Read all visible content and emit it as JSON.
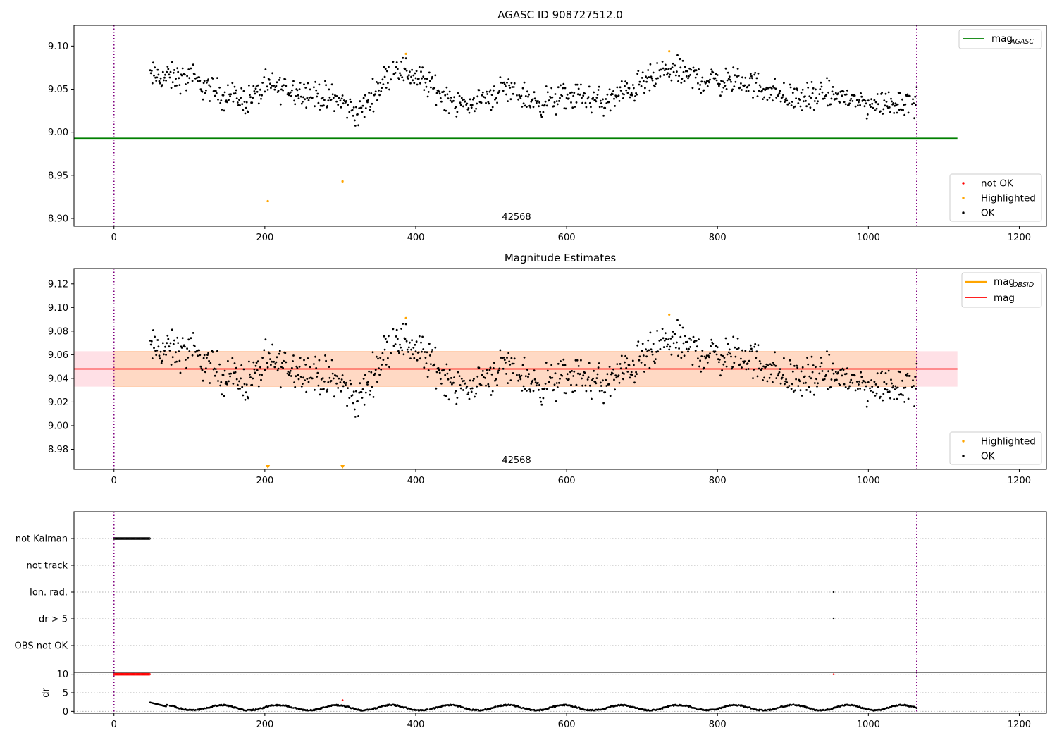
{
  "chart_data": [
    {
      "type": "scatter",
      "title": "AGASC ID 908727512.0",
      "xlim": [
        -53,
        1236
      ],
      "ylim": [
        8.891,
        9.124
      ],
      "xticks": [
        0,
        200,
        400,
        600,
        800,
        1000,
        1200
      ],
      "yticks": [
        8.9,
        8.95,
        9.0,
        9.05,
        9.1
      ],
      "annotation": {
        "text": "42568",
        "x": 532,
        "y": 8.893
      },
      "reference_line": {
        "name": "mag",
        "subscript": "AGASC",
        "y": 8.993,
        "x_range": [
          -53,
          1118
        ],
        "color": "#008000"
      },
      "vlines": [
        0,
        1064
      ],
      "highlighted_points": [
        [
          204,
          8.92
        ],
        [
          303,
          8.943
        ],
        [
          387,
          9.091
        ],
        [
          736,
          9.094
        ]
      ],
      "ok_points_desc": "~1000 black points from x=48 to x=1064, y between 9.005 and 9.092",
      "legend_upper": [
        {
          "label": "mag",
          "subscript": "AGASC",
          "color": "#008000",
          "marker": "line"
        }
      ],
      "legend_lower": [
        {
          "label": "not OK",
          "color": "#ff0000",
          "marker": "dot"
        },
        {
          "label": "Highlighted",
          "color": "#ffa500",
          "marker": "dot"
        },
        {
          "label": "OK",
          "color": "#000000",
          "marker": "dot"
        }
      ]
    },
    {
      "type": "scatter",
      "title": "Magnitude Estimates",
      "xlim": [
        -53,
        1236
      ],
      "ylim": [
        8.963,
        9.133
      ],
      "xticks": [
        0,
        200,
        400,
        600,
        800,
        1000,
        1200
      ],
      "yticks": [
        8.98,
        9.0,
        9.02,
        9.04,
        9.06,
        9.08,
        9.1,
        9.12
      ],
      "annotation": {
        "text": "42568",
        "x": 532,
        "y": 8.965
      },
      "mean_line": {
        "name": "mag",
        "y": 9.048,
        "color": "#ff0000"
      },
      "obsid_line": {
        "name": "mag",
        "subscript": "OBSID",
        "y": 9.048,
        "color": "#ffa500"
      },
      "band": {
        "low": 9.033,
        "high": 9.063,
        "x_range": [
          -53,
          1118
        ]
      },
      "vlines": [
        0,
        1064
      ],
      "highlighted_points": [
        [
          387,
          9.091
        ],
        [
          736,
          9.094
        ]
      ],
      "highlighted_offscale": [
        204,
        303
      ],
      "legend_upper": [
        {
          "label": "mag",
          "subscript": "OBSID",
          "color": "#ffa500",
          "marker": "line"
        },
        {
          "label": "mag",
          "color": "#ff0000",
          "marker": "line"
        }
      ],
      "legend_lower": [
        {
          "label": "Highlighted",
          "color": "#ffa500",
          "marker": "dot"
        },
        {
          "label": "OK",
          "color": "#000000",
          "marker": "dot"
        }
      ]
    },
    {
      "type": "scatter",
      "title": "",
      "xlim": [
        -53,
        1236
      ],
      "xticks": [
        0,
        200,
        400,
        600,
        800,
        1000,
        1200
      ],
      "flag_categories": [
        "not Kalman",
        "not track",
        "Ion. rad.",
        "dr > 5",
        "OBS not OK"
      ],
      "flag_points": {
        "not Kalman": {
          "x_range": [
            0,
            47
          ]
        },
        "Ion. rad.": {
          "x": [
            954
          ]
        },
        "dr > 5": {
          "x": [
            954
          ]
        }
      },
      "vlines": [
        0,
        1064
      ]
    },
    {
      "type": "scatter",
      "title": "",
      "xlim": [
        -53,
        1236
      ],
      "ylim": [
        -0.5,
        10.5
      ],
      "ylabel": "dr",
      "yticks": [
        0,
        5,
        10
      ],
      "xticks": [
        0,
        200,
        400,
        600,
        800,
        1000,
        1200
      ],
      "red_points": {
        "x_range": [
          0,
          47
        ],
        "y": 10,
        "extra": [
          [
            303,
            3.0
          ],
          [
            954,
            10
          ]
        ]
      },
      "ok_points_desc": "black points from x=48 to x=1064, y between 0 and 2.5",
      "vlines": [
        0,
        1064
      ]
    }
  ],
  "colors": {
    "ok": "#000000",
    "highlighted": "#ffa500",
    "not_ok": "#ff0000",
    "agasc": "#008000",
    "band_pink": "#ffe0e6",
    "band_orange": "#ffd9c4",
    "vline": "#800080"
  }
}
